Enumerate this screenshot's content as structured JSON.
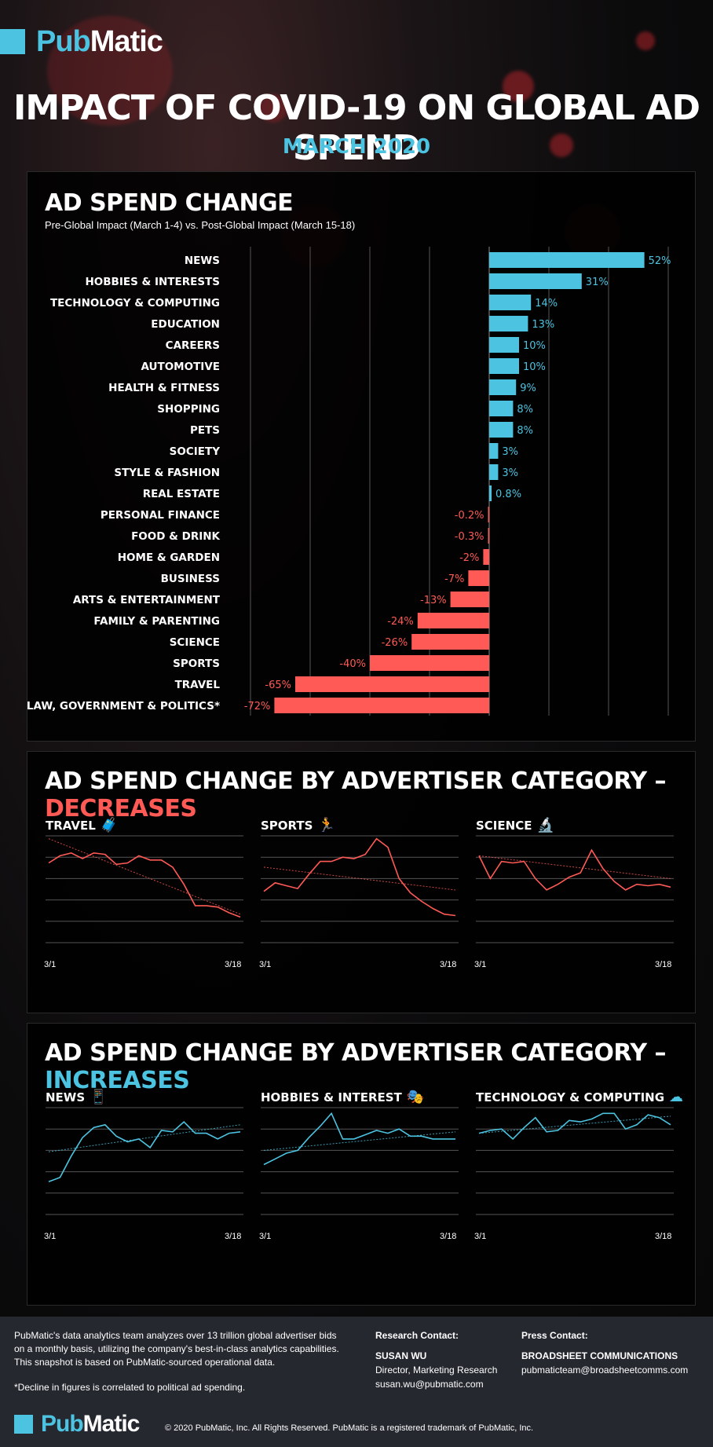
{
  "brand": {
    "pub": "Pub",
    "matic": "Matic"
  },
  "header": {
    "title": "IMPACT OF COVID-19 ON GLOBAL AD SPEND",
    "subtitle": "MARCH 2020"
  },
  "colors": {
    "accent": "#4cc3e0",
    "negative": "#ff5a55",
    "panel": "#000000",
    "footer": "#262830"
  },
  "chart_data": [
    {
      "type": "bar",
      "title": "AD SPEND CHANGE",
      "subtitle": "Pre-Global Impact (March 1-4) vs. Post-Global Impact (March 15-18)",
      "orientation": "horizontal",
      "categories": [
        "NEWS",
        "HOBBIES & INTERESTS",
        "TECHNOLOGY & COMPUTING",
        "EDUCATION",
        "CAREERS",
        "AUTOMOTIVE",
        "HEALTH & FITNESS",
        "SHOPPING",
        "PETS",
        "SOCIETY",
        "STYLE & FASHION",
        "REAL ESTATE",
        "PERSONAL FINANCE",
        "FOOD & DRINK",
        "HOME & GARDEN",
        "BUSINESS",
        "ARTS & ENTERTAINMENT",
        "FAMILY & PARENTING",
        "SCIENCE",
        "SPORTS",
        "TRAVEL",
        "LAW, GOVERNMENT & POLITICS*"
      ],
      "values": [
        52,
        31,
        14,
        13,
        10,
        10,
        9,
        8,
        8,
        3,
        3,
        0.8,
        -0.2,
        -0.3,
        -2,
        -7,
        -13,
        -24,
        -26,
        -40,
        -65,
        -72
      ],
      "data_labels": [
        "52%",
        "31%",
        "14%",
        "13%",
        "10%",
        "10%",
        "9%",
        "8%",
        "8%",
        "3%",
        "3%",
        "0.8%",
        "-0.2%",
        "-0.3%",
        "-2%",
        "-7%",
        "-13%",
        "-24%",
        "-26%",
        "-40%",
        "-65%",
        "-72%"
      ],
      "xlim": [
        -80,
        60
      ],
      "grid": true
    },
    {
      "type": "line",
      "group": "DECREASES",
      "title": "TRAVEL",
      "x": [
        "3/1",
        "3/2",
        "3/3",
        "3/4",
        "3/5",
        "3/6",
        "3/7",
        "3/8",
        "3/9",
        "3/10",
        "3/11",
        "3/12",
        "3/13",
        "3/14",
        "3/15",
        "3/16",
        "3/17",
        "3/18"
      ],
      "values": [
        4.1,
        4.6,
        4.8,
        4.4,
        4.8,
        4.7,
        4.0,
        4.1,
        4.6,
        4.3,
        4.3,
        3.8,
        2.6,
        1.1,
        1.1,
        1.0,
        0.6,
        0.3
      ],
      "trendline": [
        5.8,
        0.5
      ],
      "ylim": [
        -1.5,
        6.0
      ],
      "xlabels_shown": [
        "3/1",
        "3/18"
      ],
      "grid": true
    },
    {
      "type": "line",
      "group": "DECREASES",
      "title": "SPORTS",
      "x": [
        "3/1",
        "3/2",
        "3/3",
        "3/4",
        "3/5",
        "3/6",
        "3/7",
        "3/8",
        "3/9",
        "3/10",
        "3/11",
        "3/12",
        "3/13",
        "3/14",
        "3/15",
        "3/16",
        "3/17",
        "3/18"
      ],
      "values": [
        2.1,
        2.7,
        2.5,
        2.3,
        3.3,
        4.2,
        4.2,
        4.5,
        4.4,
        4.7,
        5.8,
        5.2,
        3.0,
        2.0,
        1.4,
        0.9,
        0.5,
        0.4
      ],
      "trendline": [
        3.8,
        2.2
      ],
      "ylim": [
        -1.5,
        6.0
      ],
      "xlabels_shown": [
        "3/1",
        "3/18"
      ],
      "grid": true
    },
    {
      "type": "line",
      "group": "DECREASES",
      "title": "SCIENCE",
      "x": [
        "3/1",
        "3/2",
        "3/3",
        "3/4",
        "3/5",
        "3/6",
        "3/7",
        "3/8",
        "3/9",
        "3/10",
        "3/11",
        "3/12",
        "3/13",
        "3/14",
        "3/15",
        "3/16",
        "3/17",
        "3/18"
      ],
      "values": [
        4.6,
        3.0,
        4.2,
        4.1,
        4.2,
        3.0,
        2.2,
        2.6,
        3.1,
        3.4,
        5.0,
        3.7,
        2.8,
        2.2,
        2.6,
        2.5,
        2.6,
        2.4
      ],
      "trendline": [
        4.6,
        3.0
      ],
      "ylim": [
        -1.5,
        6.0
      ],
      "xlabels_shown": [
        "3/1",
        "3/18"
      ],
      "grid": true
    },
    {
      "type": "line",
      "group": "INCREASES",
      "title": "NEWS",
      "x": [
        "3/1",
        "3/2",
        "3/3",
        "3/4",
        "3/5",
        "3/6",
        "3/7",
        "3/8",
        "3/9",
        "3/10",
        "3/11",
        "3/12",
        "3/13",
        "3/14",
        "3/15",
        "3/16",
        "3/17",
        "3/18"
      ],
      "values": [
        0.8,
        1.1,
        2.6,
        3.9,
        4.6,
        4.8,
        4.0,
        3.6,
        3.8,
        3.2,
        4.4,
        4.3,
        5.0,
        4.2,
        4.2,
        3.8,
        4.2,
        4.3
      ],
      "trendline": [
        2.9,
        4.8
      ],
      "ylim": [
        -1.5,
        6.0
      ],
      "xlabels_shown": [
        "3/1",
        "3/18"
      ],
      "grid": true
    },
    {
      "type": "line",
      "group": "INCREASES",
      "title": "HOBBIES & INTEREST",
      "x": [
        "3/1",
        "3/2",
        "3/3",
        "3/4",
        "3/5",
        "3/6",
        "3/7",
        "3/8",
        "3/9",
        "3/10",
        "3/11",
        "3/12",
        "3/13",
        "3/14",
        "3/15",
        "3/16",
        "3/17",
        "3/18"
      ],
      "values": [
        2.0,
        2.4,
        2.8,
        3.0,
        3.9,
        4.7,
        5.6,
        3.8,
        3.8,
        4.1,
        4.4,
        4.2,
        4.5,
        4.0,
        4.0,
        3.8,
        3.8,
        3.8
      ],
      "trendline": [
        3.0,
        4.3
      ],
      "ylim": [
        -1.5,
        6.0
      ],
      "xlabels_shown": [
        "3/1",
        "3/18"
      ],
      "grid": true
    },
    {
      "type": "line",
      "group": "INCREASES",
      "title": "TECHNOLOGY & COMPUTING",
      "x": [
        "3/1",
        "3/2",
        "3/3",
        "3/4",
        "3/5",
        "3/6",
        "3/7",
        "3/8",
        "3/9",
        "3/10",
        "3/11",
        "3/12",
        "3/13",
        "3/14",
        "3/15",
        "3/16",
        "3/17",
        "3/18"
      ],
      "values": [
        4.2,
        4.4,
        4.5,
        3.8,
        4.6,
        5.3,
        4.3,
        4.4,
        5.1,
        5.0,
        5.2,
        5.6,
        5.6,
        4.5,
        4.8,
        5.5,
        5.3,
        4.8
      ],
      "trendline": [
        4.2,
        5.4
      ],
      "ylim": [
        -1.5,
        6.0
      ],
      "xlabels_shown": [
        "3/1",
        "3/18"
      ],
      "grid": true
    }
  ],
  "sections": {
    "decreases": {
      "prefix": "AD SPEND CHANGE BY ADVERTISER CATEGORY – ",
      "highlight": "DECREASES"
    },
    "increases": {
      "prefix": "AD SPEND CHANGE BY ADVERTISER CATEGORY – ",
      "highlight": "INCREASES"
    }
  },
  "icons": [
    "suitcase-icon",
    "runner-icon",
    "microscope-icon",
    "phone-news-icon",
    "theater-masks-icon",
    "cloud-devices-icon"
  ],
  "footer": {
    "about": "PubMatic's data analytics team analyzes over 13 trillion global advertiser bids on a monthly basis, utilizing the company's best-in-class analytics capabilities. This snapshot is based on PubMatic-sourced operational data.",
    "note": "*Decline in figures is correlated to political ad spending.",
    "research_head": "Research Contact:",
    "research_name": "SUSAN WU",
    "research_title": "Director, Marketing Research",
    "research_email": "susan.wu@pubmatic.com",
    "press_head": "Press Contact:",
    "press_name": "BROADSHEET COMMUNICATIONS",
    "press_email": "pubmaticteam@broadsheetcomms.com",
    "copyright": "© 2020 PubMatic, Inc. All Rights Reserved. PubMatic is a registered trademark of PubMatic, Inc."
  }
}
